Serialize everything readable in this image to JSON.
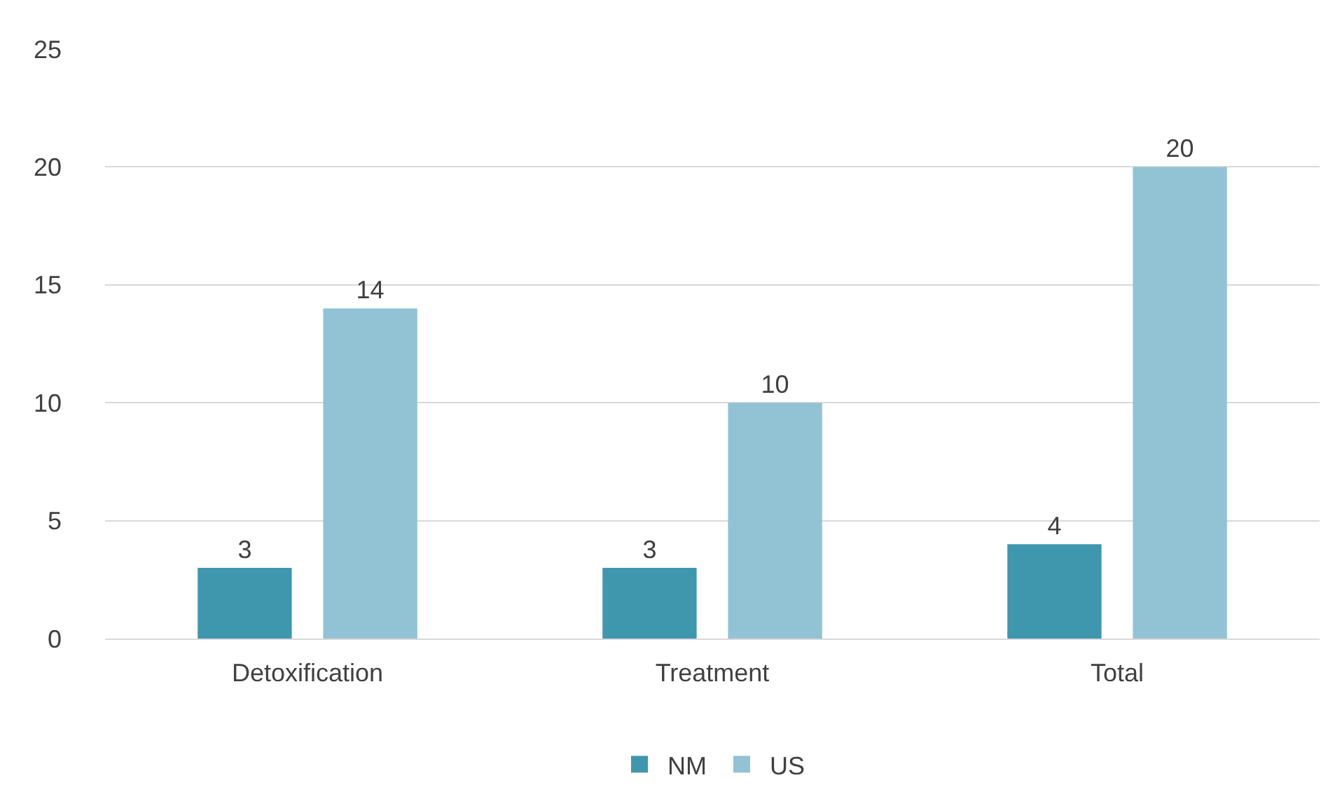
{
  "chart_data": {
    "type": "bar",
    "categories": [
      "Detoxification",
      "Treatment",
      "Total"
    ],
    "series": [
      {
        "name": "NM",
        "color": "#3f97ae",
        "values": [
          3,
          3,
          4
        ]
      },
      {
        "name": "US",
        "color": "#92c3d4",
        "values": [
          14,
          10,
          20
        ]
      }
    ],
    "ylim": [
      0,
      25
    ],
    "yticks": [
      0,
      5,
      10,
      15,
      20,
      25
    ],
    "grid": "y",
    "legend": "bottom",
    "data_labels": true
  }
}
